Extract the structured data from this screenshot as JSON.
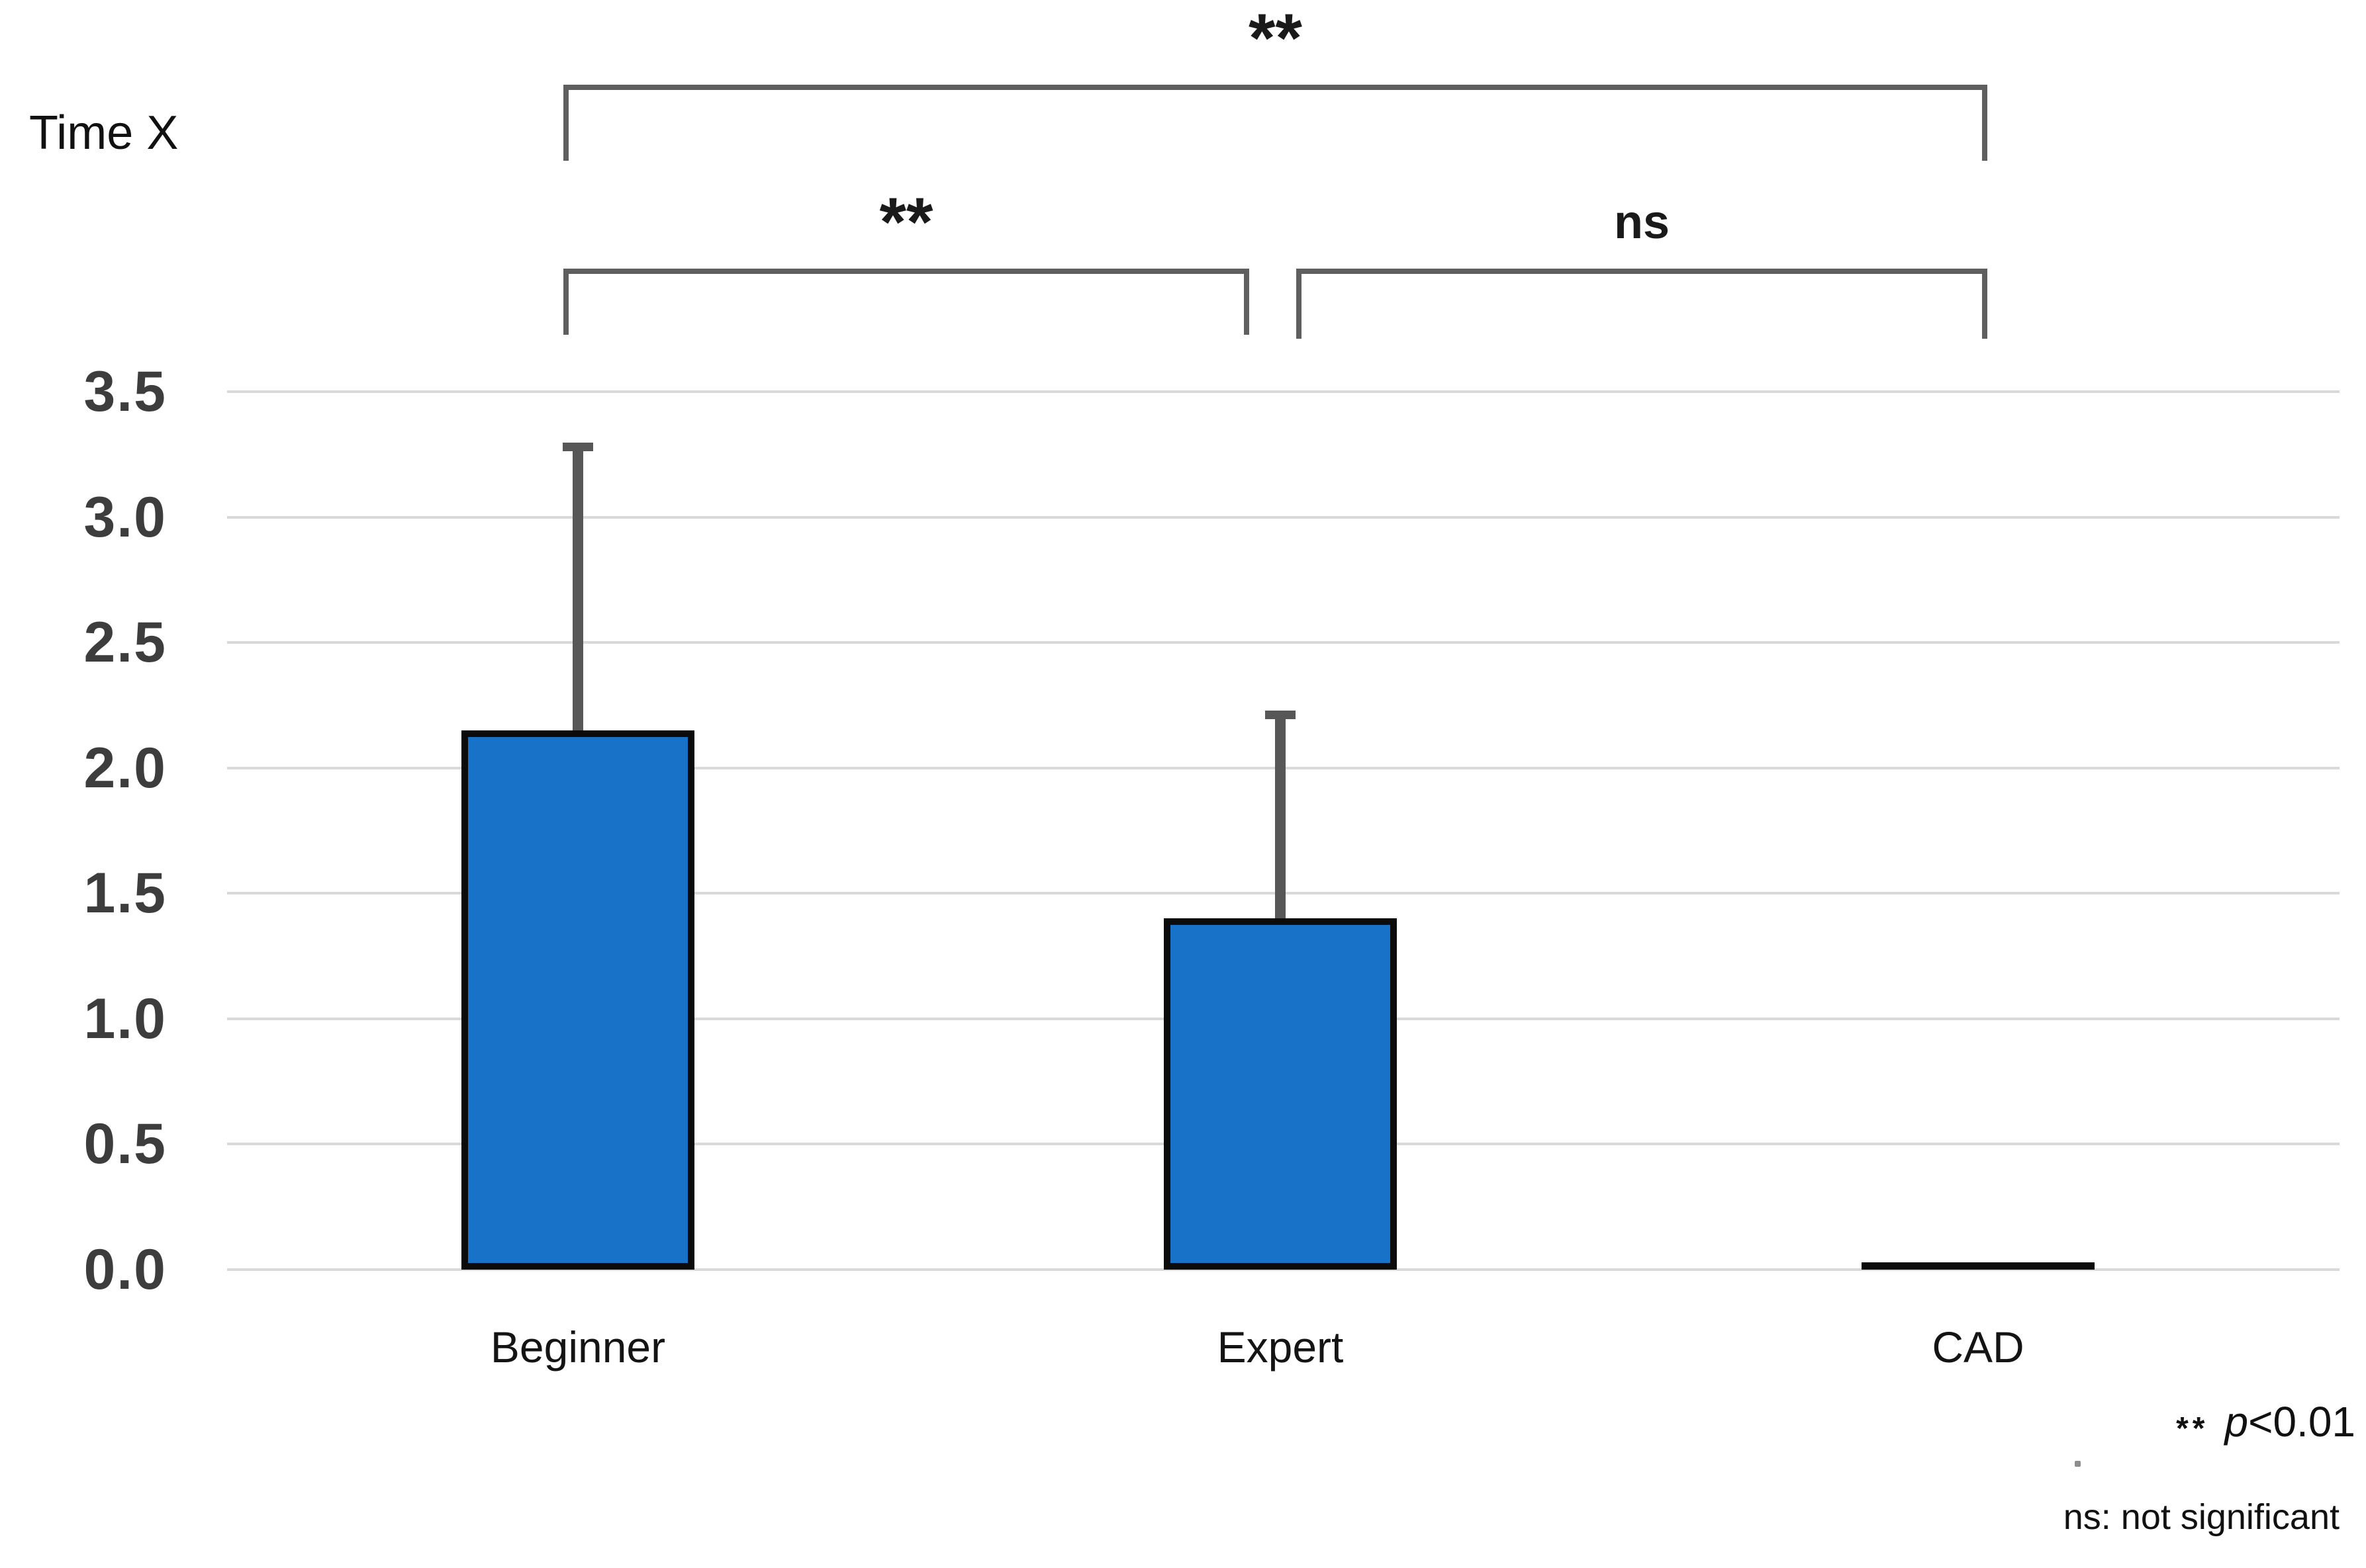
{
  "figure": {
    "background": "#ffffff"
  },
  "chart_data": {
    "type": "bar",
    "title": "Time X",
    "categories": [
      "Beginner",
      "Expert",
      "CAD"
    ],
    "values": [
      2.15,
      1.4,
      0.03
    ],
    "error_top": [
      3.28,
      2.21,
      null
    ],
    "y_ticks": [
      "3.5",
      "3.0",
      "2.5",
      "2.0",
      "1.5",
      "1.0",
      "0.5",
      "0.0"
    ],
    "ylim": [
      0,
      3.5
    ],
    "y_step": 0.5,
    "grid": true,
    "legend": false,
    "bar_color": "#1772c8",
    "bar_border_color": "#0b0b0b",
    "tiny_bar_color": "#0b0b0b",
    "error_bar_color": "#575757",
    "gridline_color": "#d9d9d9",
    "significance": [
      {
        "label": "**",
        "from": "Beginner",
        "to": "CAD"
      },
      {
        "label": "**",
        "from": "Beginner",
        "to": "Expert"
      },
      {
        "label": "ns",
        "from": "Expert",
        "to": "CAD"
      }
    ],
    "footnotes": [
      {
        "marker": "**",
        "text": "p<0.01"
      },
      {
        "marker": "",
        "text": "ns: not significant"
      }
    ]
  }
}
